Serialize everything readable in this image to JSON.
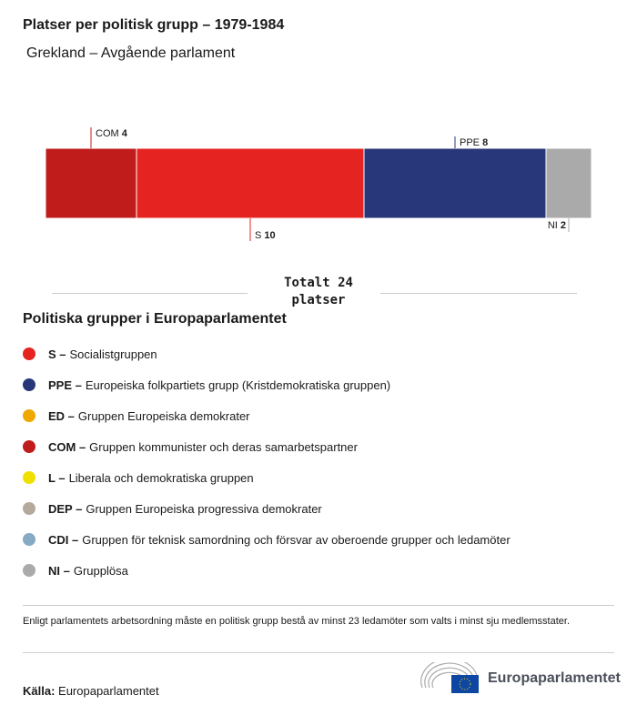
{
  "title": "Platser per politisk grupp – 1979-1984",
  "subtitle": "Grekland – Avgående parlament",
  "chart_data": {
    "type": "bar",
    "orientation": "horizontal-stacked",
    "categories": [
      "COM",
      "S",
      "PPE",
      "NI"
    ],
    "values": [
      4,
      10,
      8,
      2
    ],
    "colors": [
      "#c01c1c",
      "#e52421",
      "#283779",
      "#aaaaaa"
    ],
    "total_label": "Totalt 24 platser"
  },
  "legend": {
    "title": "Politiska grupper i Europaparlamentet",
    "items": [
      {
        "abbr": "S –",
        "label": "Socialistgruppen",
        "color": "#e52421"
      },
      {
        "abbr": "PPE –",
        "label": "Europeiska folkpartiets grupp (Kristdemokratiska gruppen)",
        "color": "#283779"
      },
      {
        "abbr": "ED –",
        "label": "Gruppen Europeiska demokrater",
        "color": "#eea800"
      },
      {
        "abbr": "COM –",
        "label": "Gruppen kommunister och deras samarbetspartner",
        "color": "#c01c1c"
      },
      {
        "abbr": "L –",
        "label": "Liberala och demokratiska gruppen",
        "color": "#f0e000"
      },
      {
        "abbr": "DEP –",
        "label": "Gruppen Europeiska progressiva demokrater",
        "color": "#b4aa9c"
      },
      {
        "abbr": "CDI –",
        "label": "Gruppen för teknisk samordning och försvar av oberoende grupper och ledamöter",
        "color": "#86aac2"
      },
      {
        "abbr": "NI –",
        "label": "Grupplösa",
        "color": "#aaaaaa"
      }
    ]
  },
  "note": "Enligt parlamentets arbetsordning måste en politisk grupp bestå av minst 23 ledamöter som valts i minst sju medlemsstater.",
  "source": {
    "label": "Källa:",
    "value": "Europaparlamentet"
  },
  "logo": {
    "text": "Europaparlamentet"
  }
}
